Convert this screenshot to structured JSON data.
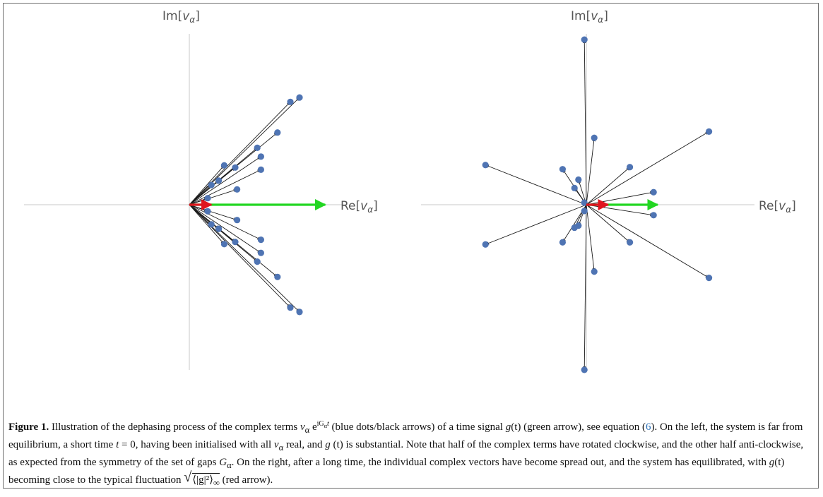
{
  "figure": {
    "left_plot": {
      "ylabel_prefix": "Im[",
      "ylabel_var": "v",
      "ylabel_sub": "α",
      "ylabel_suffix": "]",
      "xlabel_prefix": "Re[",
      "xlabel_var": "v",
      "xlabel_sub": "α",
      "xlabel_suffix": "]"
    },
    "right_plot": {
      "ylabel_prefix": "Im[",
      "ylabel_var": "v",
      "ylabel_sub": "α",
      "ylabel_suffix": "]",
      "xlabel_prefix": "Re[",
      "xlabel_var": "v",
      "xlabel_sub": "α",
      "xlabel_suffix": "]"
    },
    "colors": {
      "dot": "#4f74b3",
      "arrow": "#1a1a1a",
      "signal": "#22d622",
      "fluctuation": "#e0141e",
      "axis": "#bdbdbd"
    }
  },
  "caption": {
    "label": "Figure 1.",
    "s1": " Illustration of the dephasing process of the complex terms ",
    "term_v": "v",
    "term_sub": "α",
    "term_e": " e",
    "term_sup": "iG",
    "term_sup_sub": "α",
    "term_sup_t": "t",
    "s2": " (blue dots/black arrows) of a time signal ",
    "g1": "g",
    "t1": "(t)",
    "s3": " (green arrow), see equation (",
    "eqref": "6",
    "s4": "). On the left, the system is far from equilibrium, a short time ",
    "t_eq": "t",
    "s5": " = 0, having been initialised with all ",
    "v2": "v",
    "v2_sub": "α",
    "s6": " real, and ",
    "g2": "g",
    "s7": " (t) is substantial. Note that half of the complex terms have rotated clockwise, and the other half anti-clockwise, as expected from the symmetry of the set of gaps ",
    "G": "G",
    "G_sub": "α",
    "s8": ". On the right, after a long time, the individual complex vectors have become spread out, and the system has equilibrated, with ",
    "g3": "g",
    "t3": "(t)",
    "s9": " becoming close to the typical fluctuation ",
    "fluct": "⟨|g|²⟩",
    "fluct_sub": "∞",
    "s10": " (red arrow)."
  },
  "chart_data": [
    {
      "type": "scatter",
      "panel": "left",
      "xlabel": "Re[vα]",
      "ylabel": "Im[vα]",
      "grid": false,
      "points": [
        [
          0.16,
          0.11
        ],
        [
          0.26,
          0.07
        ],
        [
          0.39,
          0.16
        ],
        [
          0.39,
          0.22
        ],
        [
          0.48,
          0.33
        ],
        [
          0.55,
          0.47
        ],
        [
          0.6,
          0.49
        ],
        [
          0.37,
          0.26
        ],
        [
          0.1,
          0.03
        ],
        [
          0.12,
          0.09
        ],
        [
          0.19,
          0.18
        ],
        [
          0.25,
          0.17
        ],
        [
          0.16,
          -0.11
        ],
        [
          0.26,
          -0.07
        ],
        [
          0.39,
          -0.16
        ],
        [
          0.39,
          -0.22
        ],
        [
          0.48,
          -0.33
        ],
        [
          0.55,
          -0.47
        ],
        [
          0.6,
          -0.49
        ],
        [
          0.37,
          -0.26
        ],
        [
          0.1,
          -0.03
        ],
        [
          0.12,
          -0.09
        ],
        [
          0.19,
          -0.18
        ],
        [
          0.25,
          -0.17
        ]
      ],
      "signal_arrow": [
        0.74,
        0.0
      ],
      "fluctuation_arrow": [
        0.12,
        0.0
      ]
    },
    {
      "type": "scatter",
      "panel": "right",
      "xlabel": "Re[vα]",
      "ylabel": "Im[vα]",
      "grid": false,
      "points": [
        [
          -0.01,
          0.79
        ],
        [
          0.04,
          0.32
        ],
        [
          0.62,
          0.35
        ],
        [
          -0.51,
          0.19
        ],
        [
          0.22,
          0.18
        ],
        [
          -0.12,
          0.17
        ],
        [
          -0.04,
          0.12
        ],
        [
          -0.06,
          0.08
        ],
        [
          0.34,
          0.06
        ],
        [
          -0.01,
          0.01
        ],
        [
          0.34,
          -0.05
        ],
        [
          -0.01,
          -0.03
        ],
        [
          -0.04,
          -0.1
        ],
        [
          -0.06,
          -0.11
        ],
        [
          0.22,
          -0.18
        ],
        [
          -0.12,
          -0.18
        ],
        [
          0.04,
          -0.32
        ],
        [
          0.62,
          -0.35
        ],
        [
          -0.51,
          -0.19
        ],
        [
          -0.01,
          -0.79
        ]
      ],
      "signal_arrow": [
        0.36,
        0.0
      ],
      "fluctuation_arrow": [
        0.11,
        0.0
      ]
    }
  ]
}
